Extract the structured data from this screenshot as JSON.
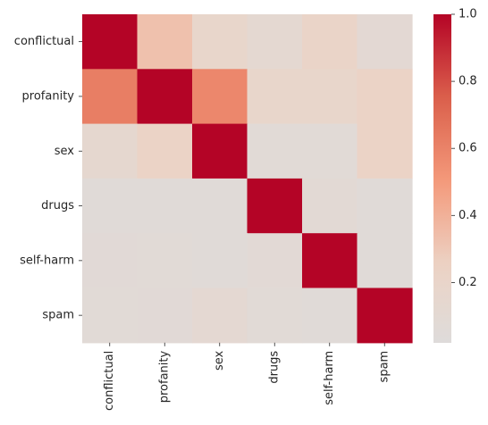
{
  "chart_data": {
    "type": "heatmap",
    "rows": [
      "conflictual",
      "profanity",
      "sex",
      "drugs",
      "self-harm",
      "spam"
    ],
    "columns": [
      "conflictual",
      "profanity",
      "sex",
      "drugs",
      "self-harm",
      "spam"
    ],
    "values": [
      [
        1.0,
        0.33,
        0.18,
        0.12,
        0.22,
        0.1
      ],
      [
        0.62,
        1.0,
        0.58,
        0.18,
        0.18,
        0.24
      ],
      [
        0.14,
        0.24,
        1.0,
        0.06,
        0.06,
        0.24
      ],
      [
        0.05,
        0.05,
        0.05,
        1.0,
        0.09,
        0.05
      ],
      [
        0.07,
        0.06,
        0.05,
        0.08,
        1.0,
        0.05
      ],
      [
        0.06,
        0.07,
        0.11,
        0.06,
        0.05,
        1.0
      ]
    ],
    "colorbar": {
      "colormap": "coolwarm (diverging, center 0)",
      "min": 0.02,
      "max": 1.0,
      "ticks": [
        0.2,
        0.4,
        0.6,
        0.8,
        1.0
      ],
      "tick_labels": [
        "0.2",
        "0.4",
        "0.6",
        "0.8",
        "1.0"
      ]
    },
    "title": "",
    "xlabel": "",
    "ylabel": ""
  }
}
